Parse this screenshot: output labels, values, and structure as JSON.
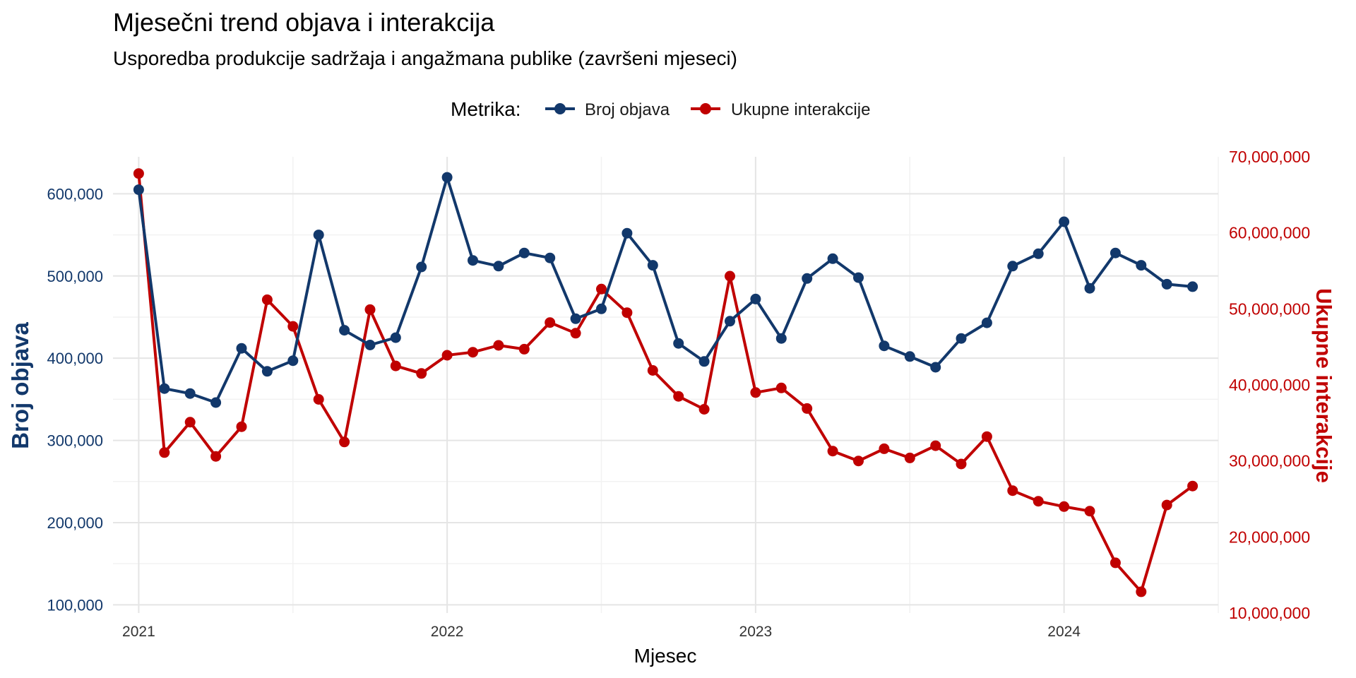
{
  "colors": {
    "primary": "#12386b",
    "secondary": "#c00000",
    "grid_major": "#e5e5e5",
    "grid_minor": "#f2f2f2"
  },
  "chart_data": {
    "type": "line",
    "title": "Mjesečni trend objava i interakcija",
    "subtitle": "Usporedba produkcije sadržaja i angažmana publike (završeni mjeseci)",
    "xlabel": "Mjesec",
    "x_tick_labels": [
      "2021",
      "2022",
      "2023",
      "2024"
    ],
    "x_ticks": [
      "2021-01",
      "2022-01",
      "2023-01",
      "2024-01"
    ],
    "x_range": [
      "2020-12",
      "2024-07"
    ],
    "x": [
      "2021-01",
      "2021-02",
      "2021-03",
      "2021-04",
      "2021-05",
      "2021-06",
      "2021-07",
      "2021-08",
      "2021-09",
      "2021-10",
      "2021-11",
      "2021-12",
      "2022-01",
      "2022-02",
      "2022-03",
      "2022-04",
      "2022-05",
      "2022-06",
      "2022-07",
      "2022-08",
      "2022-09",
      "2022-10",
      "2022-11",
      "2022-12",
      "2023-01",
      "2023-02",
      "2023-03",
      "2023-04",
      "2023-05",
      "2023-06",
      "2023-07",
      "2023-08",
      "2023-09",
      "2023-10",
      "2023-11",
      "2023-12",
      "2024-01",
      "2024-02",
      "2024-03",
      "2024-04",
      "2024-05",
      "2024-06"
    ],
    "legend": {
      "title": "Metrika:",
      "position": "top"
    },
    "grid": true,
    "y_left": {
      "label": "Broj objava",
      "ylim": [
        90000,
        645000
      ],
      "ticks": [
        100000,
        200000,
        300000,
        400000,
        500000,
        600000
      ],
      "tick_labels": [
        "100,000",
        "200,000",
        "300,000",
        "400,000",
        "500,000",
        "600,000"
      ]
    },
    "y_right": {
      "label": "Ukupne interakcije",
      "ylim": [
        10000000,
        70000000
      ],
      "ticks": [
        10000000,
        20000000,
        30000000,
        40000000,
        50000000,
        60000000,
        70000000
      ],
      "tick_labels": [
        "10,000,000",
        "20,000,000",
        "30,000,000",
        "40,000,000",
        "50,000,000",
        "60,000,000",
        "70,000,000"
      ]
    },
    "series": [
      {
        "name": "Broj objava",
        "axis": "left",
        "color": "#12386b",
        "values": [
          605000,
          363000,
          357000,
          346000,
          412000,
          384000,
          397000,
          550000,
          434000,
          416000,
          425000,
          511000,
          620000,
          519000,
          512000,
          528000,
          522000,
          448000,
          460000,
          552000,
          513000,
          418000,
          396000,
          445000,
          472000,
          424000,
          497000,
          521000,
          498000,
          415000,
          402000,
          389000,
          424000,
          443000,
          512000,
          527000,
          566000,
          485000,
          528000,
          513000,
          490000,
          487000
        ]
      },
      {
        "name": "Ukupne interakcije",
        "axis": "right",
        "color": "#c00000",
        "values": [
          67800000,
          31100000,
          35100000,
          30600000,
          34500000,
          51200000,
          47700000,
          38100000,
          32500000,
          49900000,
          42500000,
          41500000,
          43900000,
          44300000,
          45200000,
          44700000,
          48200000,
          46800000,
          52600000,
          49500000,
          41900000,
          38500000,
          36800000,
          54300000,
          39000000,
          39600000,
          36900000,
          31300000,
          30000000,
          31600000,
          30400000,
          32000000,
          29600000,
          33200000,
          26100000,
          24700000,
          24000000,
          23400000,
          16600000,
          12800000,
          24200000,
          26700000
        ]
      }
    ]
  }
}
